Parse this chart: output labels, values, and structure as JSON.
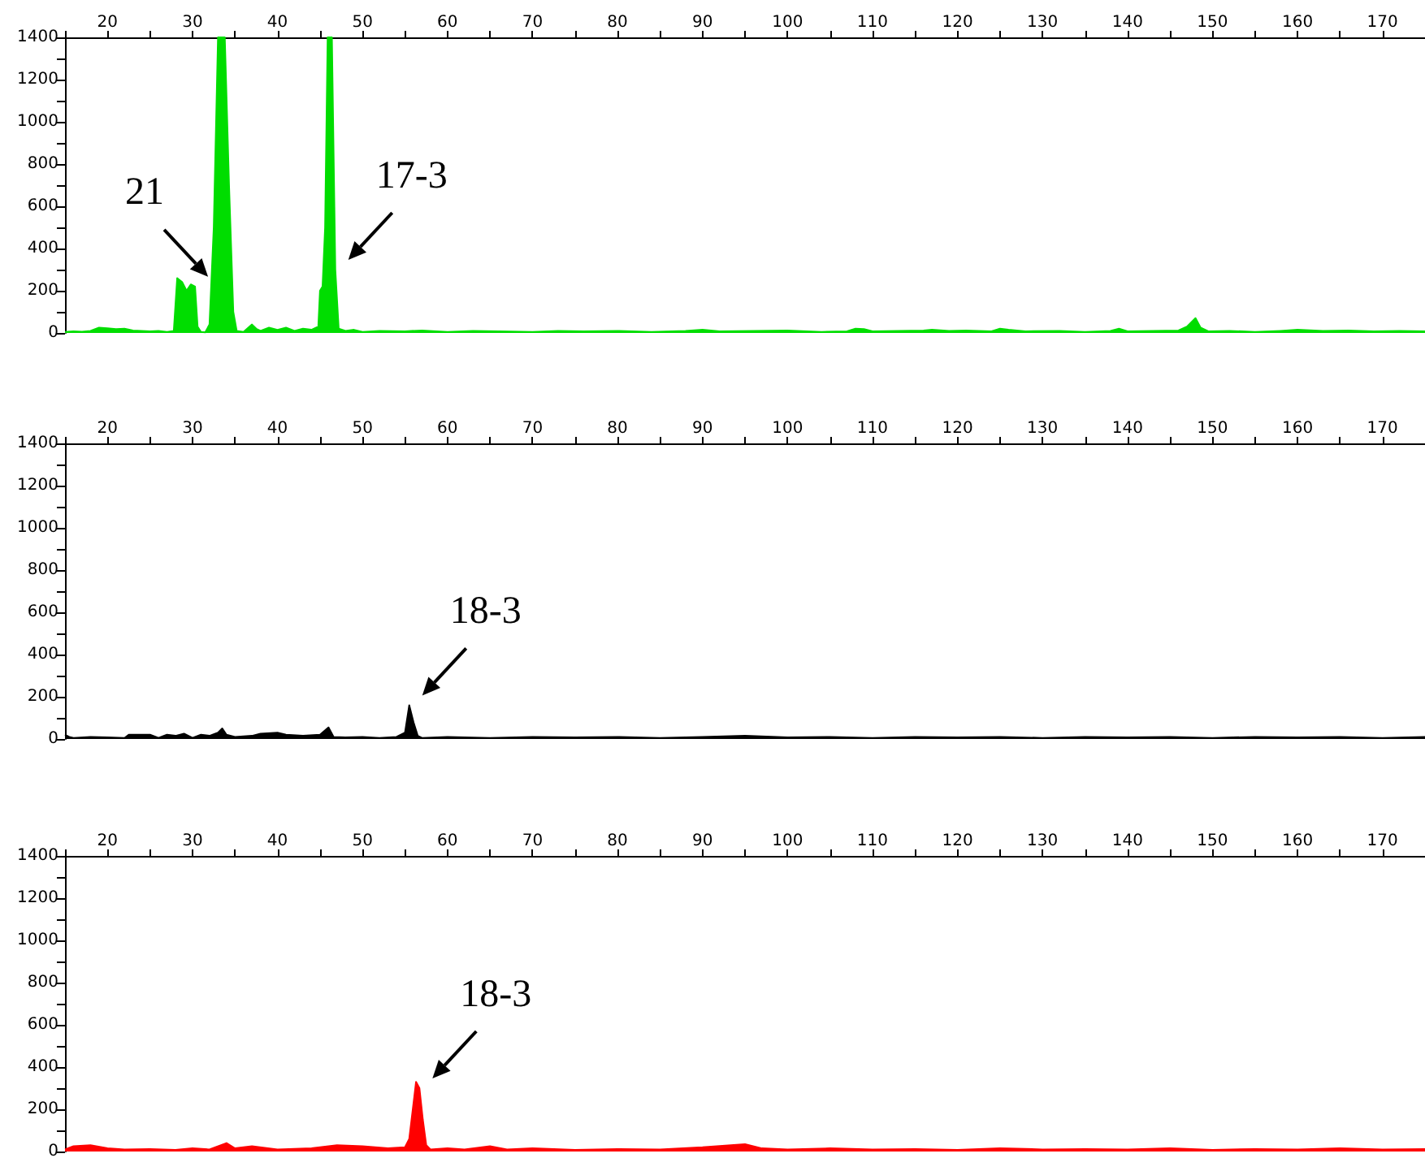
{
  "chart_data": [
    {
      "type": "area",
      "color": "#00dd00",
      "xlim": [
        15,
        175
      ],
      "ylim": [
        0,
        1400
      ],
      "grid": false,
      "marker": "none",
      "xticks": [
        {
          "value": 15,
          "label": null
        },
        20,
        {
          "value": 25,
          "label": null
        },
        30,
        {
          "value": 35,
          "label": null
        },
        40,
        {
          "value": 45,
          "label": null
        },
        50,
        {
          "value": 55,
          "label": null
        },
        60,
        {
          "value": 65,
          "label": null
        },
        70,
        {
          "value": 75,
          "label": null
        },
        80,
        {
          "value": 85,
          "label": null
        },
        90,
        {
          "value": 95,
          "label": null
        },
        100,
        {
          "value": 105,
          "label": null
        },
        110,
        {
          "value": 115,
          "label": null
        },
        120,
        {
          "value": 125,
          "label": null
        },
        130,
        {
          "value": 135,
          "label": null
        },
        140,
        {
          "value": 145,
          "label": null
        },
        150,
        {
          "value": 155,
          "label": null
        },
        160,
        {
          "value": 165,
          "label": null
        },
        170,
        {
          "value": 175,
          "label": null
        }
      ],
      "yticks": [
        0,
        {
          "value": 100,
          "label": null
        },
        200,
        {
          "value": 300,
          "label": null
        },
        400,
        {
          "value": 500,
          "label": null
        },
        600,
        {
          "value": 700,
          "label": null
        },
        800,
        {
          "value": 900,
          "label": null
        },
        1000,
        {
          "value": 1100,
          "label": null
        },
        1200,
        {
          "value": 1300,
          "label": null
        },
        1400
      ],
      "x": [
        15,
        16,
        17,
        18,
        19,
        20,
        21,
        22,
        23,
        24,
        25,
        26,
        27,
        27.8,
        28.2,
        28.8,
        29.3,
        29.8,
        30.3,
        30.6,
        31,
        31.5,
        32,
        32.5,
        33,
        33.8,
        34.3,
        34.8,
        35.2,
        36,
        37,
        37.5,
        38,
        39,
        40,
        41,
        42,
        43,
        44,
        44.8,
        45,
        45.3,
        45.6,
        45.9,
        46.4,
        46.8,
        47.2,
        48,
        49,
        50,
        52,
        55,
        57,
        60,
        63,
        66,
        70,
        73,
        76,
        80,
        84,
        88,
        90,
        92,
        96,
        100,
        104,
        107,
        108,
        109,
        110,
        113,
        116,
        117,
        119,
        121,
        124,
        125,
        126,
        128,
        132,
        135,
        138,
        139,
        140,
        143,
        146,
        147,
        148,
        148.6,
        149.5,
        152,
        155,
        158,
        160,
        163,
        166,
        169,
        172,
        175
      ],
      "values": [
        5,
        8,
        6,
        10,
        25,
        22,
        18,
        20,
        12,
        10,
        8,
        10,
        5,
        10,
        260,
        240,
        200,
        230,
        220,
        30,
        5,
        3,
        40,
        500,
        1400,
        1400,
        700,
        100,
        10,
        5,
        40,
        20,
        10,
        25,
        15,
        25,
        10,
        20,
        15,
        30,
        200,
        220,
        500,
        1400,
        1400,
        300,
        20,
        10,
        15,
        5,
        10,
        8,
        12,
        5,
        10,
        8,
        5,
        10,
        8,
        10,
        5,
        10,
        15,
        8,
        10,
        12,
        5,
        8,
        20,
        18,
        8,
        10,
        12,
        15,
        10,
        12,
        8,
        20,
        15,
        8,
        10,
        5,
        10,
        20,
        8,
        10,
        12,
        30,
        70,
        25,
        8,
        10,
        5,
        10,
        15,
        10,
        12,
        8,
        10,
        8
      ],
      "annotations": [
        {
          "text": "21",
          "x": 30.3,
          "y": 220
        },
        {
          "text": "17-3",
          "x": 46.8,
          "y": 300
        }
      ]
    },
    {
      "type": "area",
      "color": "#000000",
      "xlim": [
        15,
        175
      ],
      "ylim": [
        0,
        1400
      ],
      "grid": false,
      "marker": "none",
      "xticks": [
        {
          "value": 15,
          "label": null
        },
        20,
        {
          "value": 25,
          "label": null
        },
        30,
        {
          "value": 35,
          "label": null
        },
        40,
        {
          "value": 45,
          "label": null
        },
        50,
        {
          "value": 55,
          "label": null
        },
        60,
        {
          "value": 65,
          "label": null
        },
        70,
        {
          "value": 75,
          "label": null
        },
        80,
        {
          "value": 85,
          "label": null
        },
        90,
        {
          "value": 95,
          "label": null
        },
        100,
        {
          "value": 105,
          "label": null
        },
        110,
        {
          "value": 115,
          "label": null
        },
        120,
        {
          "value": 125,
          "label": null
        },
        130,
        {
          "value": 135,
          "label": null
        },
        140,
        {
          "value": 145,
          "label": null
        },
        150,
        {
          "value": 155,
          "label": null
        },
        160,
        {
          "value": 165,
          "label": null
        },
        170,
        {
          "value": 175,
          "label": null
        }
      ],
      "yticks": [
        0,
        {
          "value": 100,
          "label": null
        },
        200,
        {
          "value": 300,
          "label": null
        },
        400,
        {
          "value": 500,
          "label": null
        },
        600,
        {
          "value": 700,
          "label": null
        },
        800,
        {
          "value": 900,
          "label": null
        },
        1000,
        {
          "value": 1100,
          "label": null
        },
        1200,
        {
          "value": 1300,
          "label": null
        },
        1400
      ],
      "x": [
        15,
        15.5,
        16,
        18,
        20,
        22,
        22.5,
        25,
        26,
        27,
        28,
        29,
        30,
        31,
        32,
        33,
        33.5,
        34,
        35,
        37,
        38,
        40,
        41,
        43,
        45,
        46,
        46.6,
        48,
        50,
        52,
        54,
        55,
        55.5,
        56,
        56.5,
        57,
        60,
        65,
        70,
        75,
        80,
        85,
        90,
        95,
        100,
        105,
        110,
        115,
        120,
        125,
        130,
        135,
        140,
        145,
        150,
        155,
        160,
        165,
        170,
        175
      ],
      "values": [
        20,
        10,
        5,
        10,
        8,
        5,
        20,
        20,
        5,
        20,
        15,
        25,
        5,
        20,
        15,
        30,
        50,
        20,
        10,
        15,
        25,
        30,
        20,
        15,
        20,
        55,
        10,
        8,
        10,
        5,
        10,
        30,
        160,
        80,
        15,
        5,
        10,
        5,
        10,
        8,
        10,
        5,
        10,
        15,
        8,
        10,
        5,
        10,
        8,
        10,
        5,
        10,
        8,
        10,
        5,
        10,
        8,
        10,
        5,
        10
      ],
      "annotations": [
        {
          "text": "18-3",
          "x": 55.5,
          "y": 160
        }
      ]
    },
    {
      "type": "area",
      "color": "#ff0000",
      "xlim": [
        15,
        175
      ],
      "ylim": [
        0,
        1400
      ],
      "grid": false,
      "marker": "none",
      "xticks": [
        {
          "value": 15,
          "label": null
        },
        20,
        {
          "value": 25,
          "label": null
        },
        30,
        {
          "value": 35,
          "label": null
        },
        40,
        {
          "value": 45,
          "label": null
        },
        50,
        {
          "value": 55,
          "label": null
        },
        60,
        {
          "value": 65,
          "label": null
        },
        70,
        {
          "value": 75,
          "label": null
        },
        80,
        {
          "value": 85,
          "label": null
        },
        90,
        {
          "value": 95,
          "label": null
        },
        100,
        {
          "value": 105,
          "label": null
        },
        110,
        {
          "value": 115,
          "label": null
        },
        120,
        {
          "value": 125,
          "label": null
        },
        130,
        {
          "value": 135,
          "label": null
        },
        140,
        {
          "value": 145,
          "label": null
        },
        150,
        {
          "value": 155,
          "label": null
        },
        160,
        {
          "value": 165,
          "label": null
        },
        170,
        {
          "value": 175,
          "label": null
        }
      ],
      "yticks": [
        0,
        {
          "value": 100,
          "label": null
        },
        200,
        {
          "value": 300,
          "label": null
        },
        400,
        {
          "value": 500,
          "label": null
        },
        600,
        {
          "value": 700,
          "label": null
        },
        800,
        {
          "value": 900,
          "label": null
        },
        1000,
        {
          "value": 1100,
          "label": null
        },
        1200,
        {
          "value": 1300,
          "label": null
        },
        1400
      ],
      "x": [
        15,
        16,
        18,
        20,
        22,
        25,
        28,
        30,
        32,
        34,
        35,
        37,
        40,
        44,
        47,
        50,
        53,
        55,
        55.5,
        56.3,
        56.7,
        57.1,
        57.5,
        58,
        60,
        62,
        65,
        67,
        70,
        75,
        80,
        85,
        90,
        95,
        97,
        100,
        105,
        110,
        115,
        120,
        125,
        130,
        135,
        140,
        145,
        150,
        155,
        160,
        165,
        170,
        175
      ],
      "values": [
        10,
        25,
        30,
        15,
        10,
        12,
        8,
        15,
        10,
        40,
        15,
        25,
        10,
        15,
        30,
        25,
        15,
        20,
        60,
        330,
        300,
        150,
        30,
        10,
        15,
        10,
        25,
        10,
        15,
        8,
        12,
        10,
        20,
        35,
        15,
        10,
        15,
        10,
        12,
        8,
        15,
        10,
        12,
        10,
        15,
        8,
        12,
        10,
        15,
        10,
        12
      ],
      "annotations": [
        {
          "text": "18-3",
          "x": 56.7,
          "y": 300
        }
      ]
    }
  ]
}
